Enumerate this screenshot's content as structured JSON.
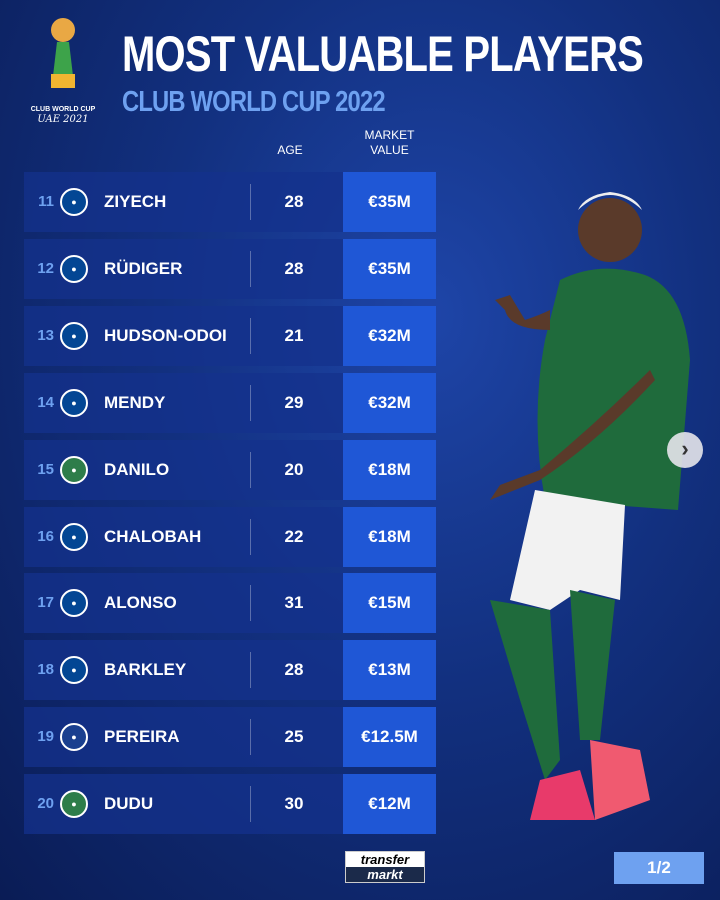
{
  "logo": {
    "line1": "CLUB WORLD CUP",
    "line2": "UAE 2021",
    "badge": "FIFA"
  },
  "header": {
    "title": "MOST VALUABLE PLAYERS",
    "subtitle": "CLUB WORLD CUP 2022"
  },
  "columns": {
    "age": "AGE",
    "market_value_1": "MARKET",
    "market_value_2": "VALUE"
  },
  "rows": [
    {
      "rank": "11",
      "club": "chelsea",
      "name": "ZIYECH",
      "age": "28",
      "value": "€35M"
    },
    {
      "rank": "12",
      "club": "chelsea",
      "name": "RÜDIGER",
      "age": "28",
      "value": "€35M"
    },
    {
      "rank": "13",
      "club": "chelsea",
      "name": "HUDSON-ODOI",
      "age": "21",
      "value": "€32M"
    },
    {
      "rank": "14",
      "club": "chelsea",
      "name": "MENDY",
      "age": "29",
      "value": "€32M"
    },
    {
      "rank": "15",
      "club": "palmeiras",
      "name": "DANILO",
      "age": "20",
      "value": "€18M"
    },
    {
      "rank": "16",
      "club": "chelsea",
      "name": "CHALOBAH",
      "age": "22",
      "value": "€18M"
    },
    {
      "rank": "17",
      "club": "chelsea",
      "name": "ALONSO",
      "age": "31",
      "value": "€15M"
    },
    {
      "rank": "18",
      "club": "chelsea",
      "name": "BARKLEY",
      "age": "28",
      "value": "€13M"
    },
    {
      "rank": "19",
      "club": "al-hilal",
      "name": "PEREIRA",
      "age": "25",
      "value": "€12.5M"
    },
    {
      "rank": "20",
      "club": "palmeiras",
      "name": "DUDU",
      "age": "30",
      "value": "€12M"
    }
  ],
  "club_colors": {
    "chelsea": "#034694",
    "palmeiras": "#2e7d4a",
    "al-hilal": "#1a3f8f"
  },
  "footer": {
    "brand_1": "transfer",
    "brand_2": "markt",
    "page": "1/2"
  },
  "next_icon": "chevron-right-icon"
}
